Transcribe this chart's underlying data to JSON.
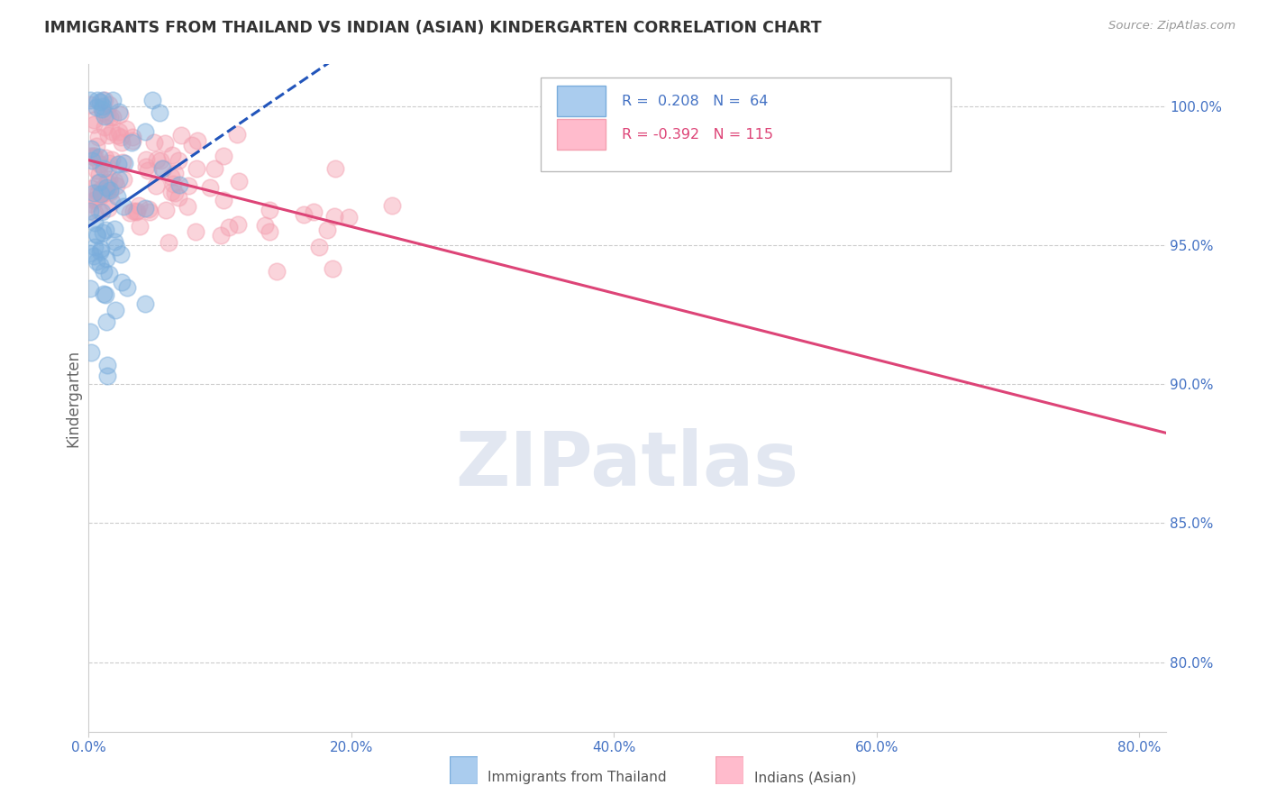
{
  "title": "IMMIGRANTS FROM THAILAND VS INDIAN (ASIAN) KINDERGARTEN CORRELATION CHART",
  "source": "Source: ZipAtlas.com",
  "ylabel": "Kindergarten",
  "x_tick_labels": [
    "0.0%",
    "20.0%",
    "40.0%",
    "60.0%",
    "80.0%"
  ],
  "x_tick_values": [
    0.0,
    0.2,
    0.4,
    0.6,
    0.8
  ],
  "y_tick_labels": [
    "80.0%",
    "85.0%",
    "90.0%",
    "95.0%",
    "100.0%"
  ],
  "y_tick_values": [
    0.8,
    0.85,
    0.9,
    0.95,
    1.0
  ],
  "xlim": [
    0.0,
    0.82
  ],
  "ylim": [
    0.775,
    1.015
  ],
  "legend_label1": "Immigrants from Thailand",
  "legend_label2": "Indians (Asian)",
  "blue_color": "#7aaddc",
  "pink_color": "#f4a0b0",
  "trendline_blue_color": "#2255bb",
  "trendline_pink_color": "#dd4477",
  "watermark": "ZIPatlas",
  "watermark_color": "#d0d8e8",
  "background_color": "#ffffff",
  "plot_bg_color": "#ffffff",
  "grid_color": "#cccccc",
  "axis_color": "#cccccc",
  "title_color": "#333333",
  "tick_label_color": "#4472c4",
  "source_color": "#999999",
  "legend_R1": "R =  0.208",
  "legend_N1": "N =  64",
  "legend_R2": "R = -0.392",
  "legend_N2": "N = 115"
}
